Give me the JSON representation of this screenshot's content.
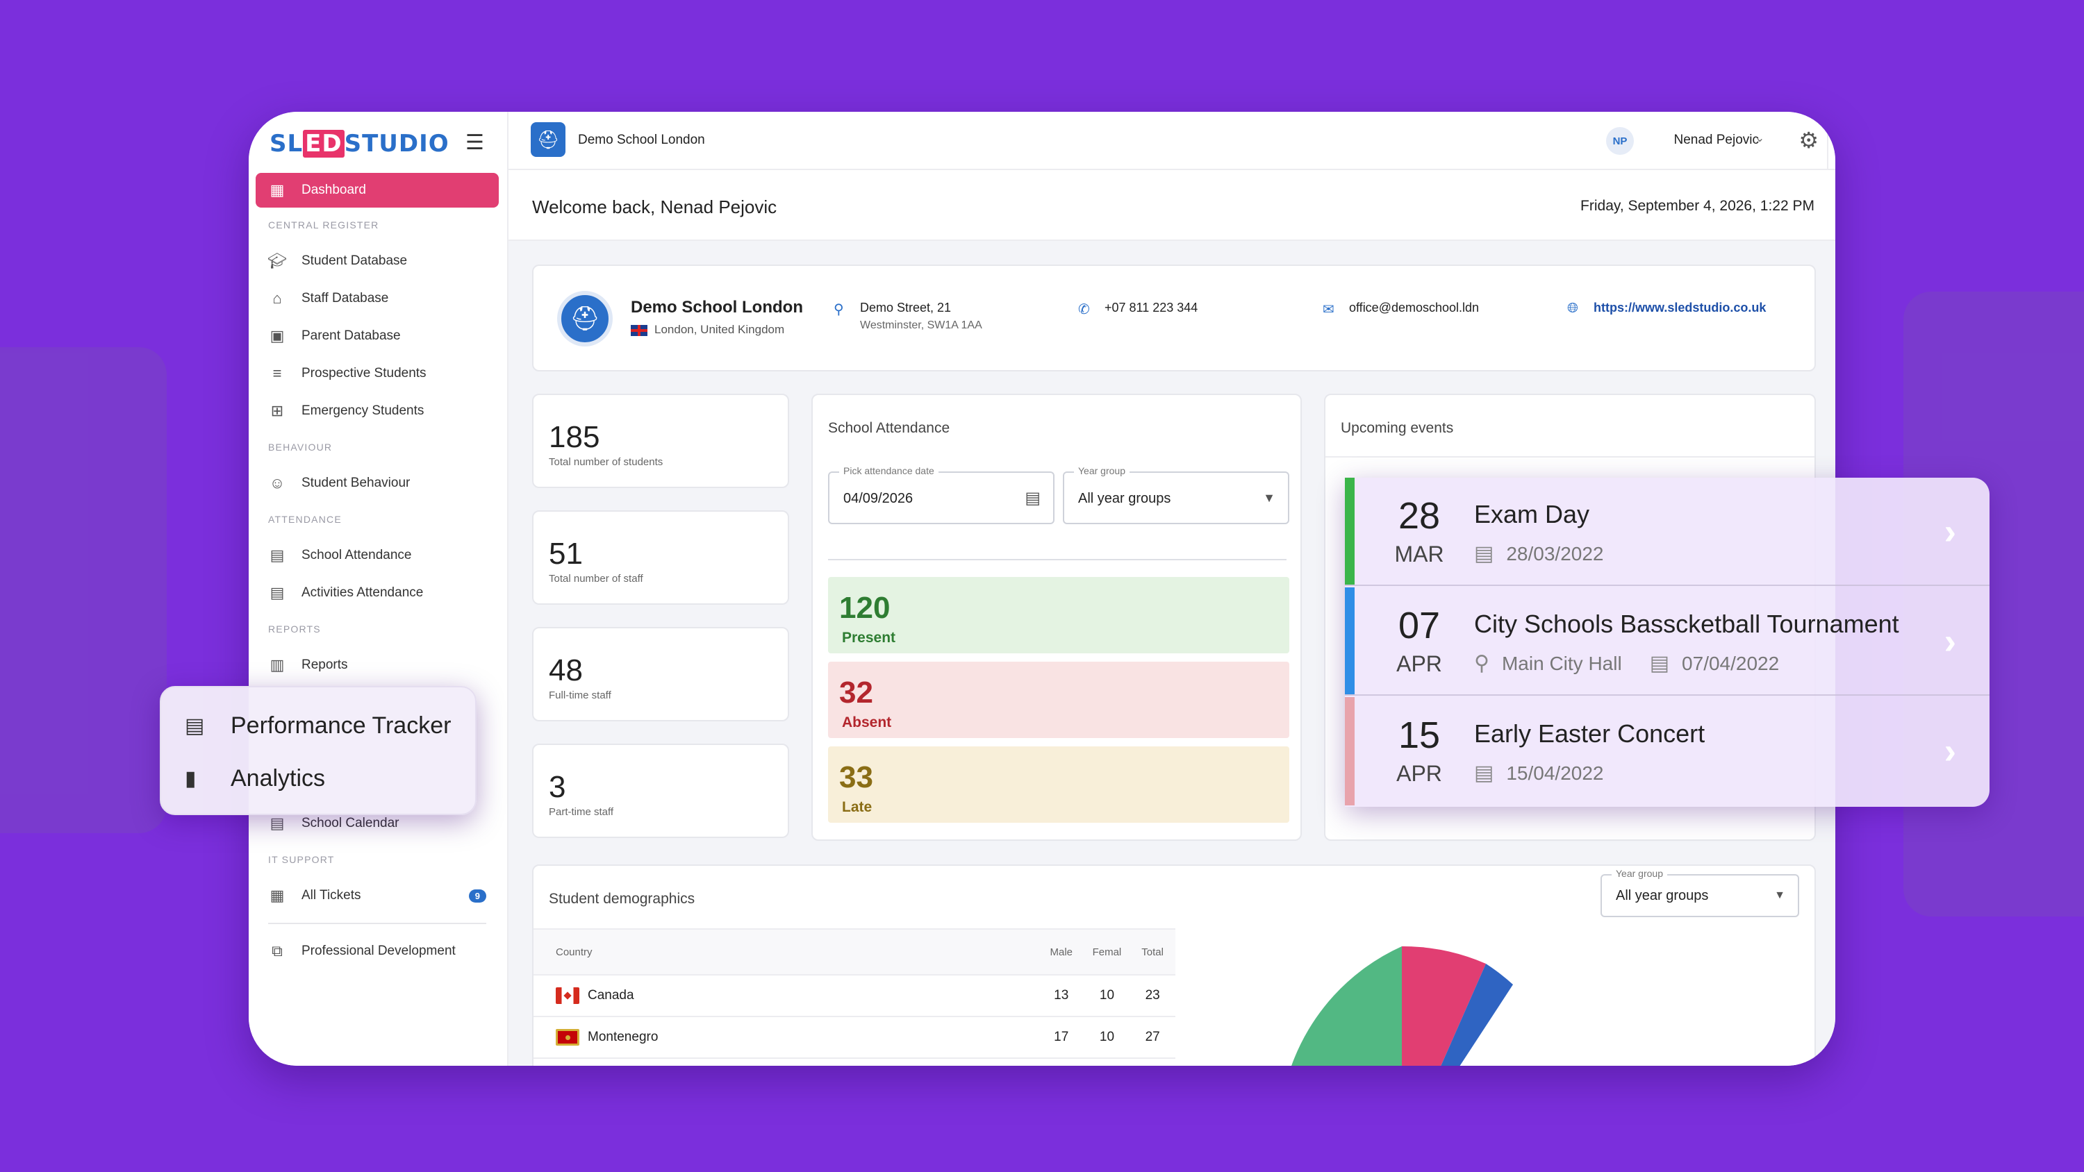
{
  "brand": {
    "logo_text_pre": "SL",
    "logo_text_ed": "ED",
    "logo_text_post": "STUDIO"
  },
  "colors": {
    "background": "#7b2fdc",
    "accent": "#e13e72",
    "primary": "#2a6fc9",
    "present": "#2e7d32",
    "absent": "#b3262d",
    "late": "#8a6d15"
  },
  "sidebar": {
    "dashboard": "Dashboard",
    "sections": {
      "central": "CENTRAL REGISTER",
      "behaviour": "BEHAVIOUR",
      "attendance": "ATTENDANCE",
      "reports": "REPORTS",
      "it": "IT SUPPORT"
    },
    "items": {
      "student_db": "Student Database",
      "staff_db": "Staff Database",
      "parent_db": "Parent Database",
      "prospective": "Prospective Students",
      "emergency": "Emergency Students",
      "behaviour": "Student Behaviour",
      "school_att": "School Attendance",
      "activities_att": "Activities Attendance",
      "reports": "Reports",
      "calendar": "School Calendar",
      "tickets": "All Tickets",
      "tickets_badge": "9",
      "prof_dev": "Professional Development"
    }
  },
  "floating_menu": {
    "performance": "Performance Tracker",
    "analytics": "Analytics"
  },
  "topbar": {
    "school": "Demo School London",
    "initials": "NP",
    "user": "Nenad Pejovic"
  },
  "welcome": {
    "text": "Welcome back, Nenad Pejovic",
    "datetime": "Friday, September 4, 2026, 1:22 PM"
  },
  "school": {
    "name": "Demo School London",
    "location": "London, United Kingdom",
    "address1": "Demo Street, 21",
    "address2": "Westminster, SW1A 1AA",
    "phone": "+07 811 223 344",
    "email": "office@demoschool.ldn",
    "website": "https://www.sledstudio.co.uk"
  },
  "stats": [
    {
      "value": "185",
      "label": "Total number of students"
    },
    {
      "value": "51",
      "label": "Total number of staff"
    },
    {
      "value": "48",
      "label": "Full-time staff"
    },
    {
      "value": "3",
      "label": "Part-time staff"
    }
  ],
  "attendance": {
    "title": "School Attendance",
    "date_label": "Pick attendance date",
    "date_value": "04/09/2026",
    "year_label": "Year group",
    "year_value": "All year groups",
    "present": "120",
    "present_label": "Present",
    "absent": "32",
    "absent_label": "Absent",
    "late": "33",
    "late_label": "Late"
  },
  "events": {
    "title": "Upcoming events",
    "items": [
      {
        "day": "28",
        "month": "MAR",
        "title": "Exam Day",
        "location": "",
        "date": "28/03/2022",
        "color": "#3bb54a"
      },
      {
        "day": "07",
        "month": "APR",
        "title": "City Schools Basscketball Tournament",
        "location": "Main City Hall",
        "date": "07/04/2022",
        "color": "#2f8ee6"
      },
      {
        "day": "15",
        "month": "APR",
        "title": "Early Easter Concert",
        "location": "",
        "date": "15/04/2022",
        "color": "#e8a3ac"
      }
    ]
  },
  "demographics": {
    "title": "Student demographics",
    "year_label": "Year group",
    "year_value": "All year groups",
    "headers": {
      "country": "Country",
      "male": "Male",
      "female": "Femal",
      "total": "Total"
    },
    "rows": [
      {
        "country": "Canada",
        "male": "13",
        "female": "10",
        "total": "23"
      },
      {
        "country": "Montenegro",
        "male": "17",
        "female": "10",
        "total": "27"
      }
    ]
  }
}
